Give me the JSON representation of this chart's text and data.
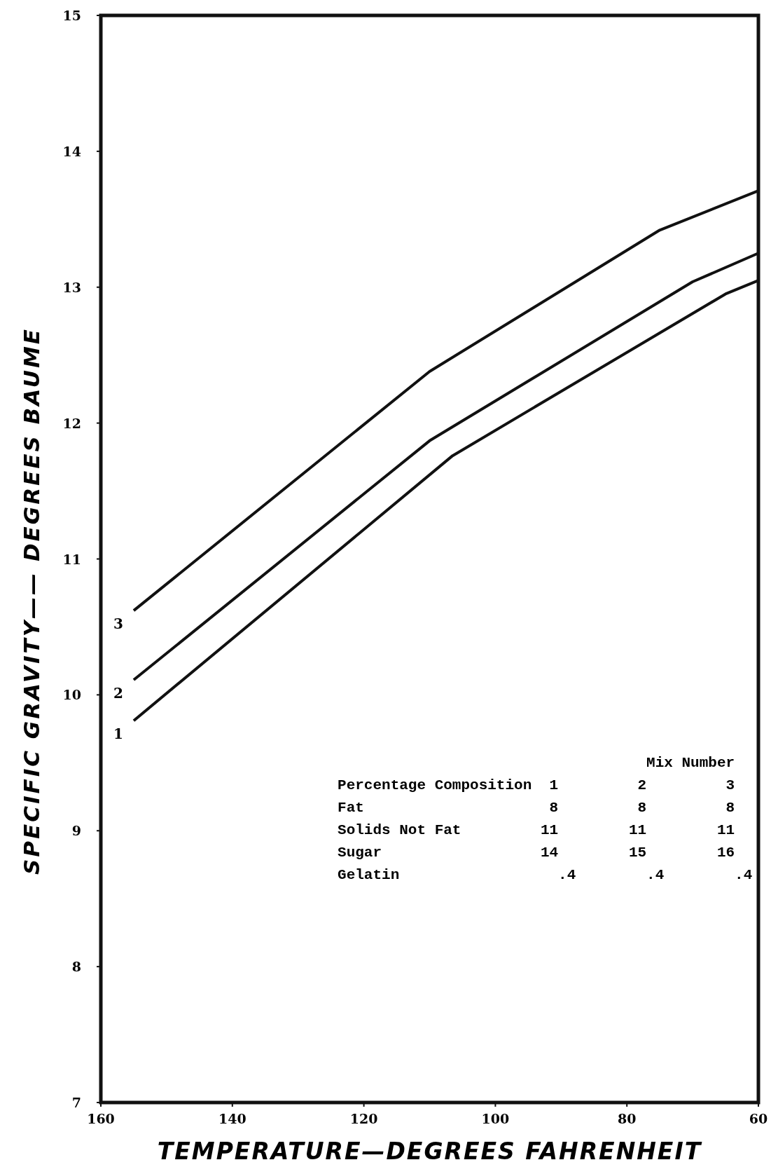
{
  "chart_data": {
    "type": "line",
    "xlabel": "TEMPERATURE—DEGREES FAHRENHEIT",
    "ylabel": "SPECIFIC GRAVITY—— DEGREES BAUME",
    "xlim": [
      160,
      60
    ],
    "ylim": [
      7,
      15
    ],
    "xticks": [
      160,
      140,
      120,
      100,
      80,
      60
    ],
    "yticks": [
      7,
      8,
      9,
      10,
      11,
      12,
      13,
      14,
      15
    ],
    "grid": false,
    "marker": "none",
    "line_style": "solid",
    "series": [
      {
        "name": "3",
        "color": "#111111",
        "x": [
          155,
          110,
          75,
          60
        ],
        "values": [
          10.62,
          12.38,
          13.42,
          13.71
        ]
      },
      {
        "name": "2",
        "color": "#111111",
        "x": [
          155,
          110,
          70,
          60
        ],
        "values": [
          10.11,
          11.87,
          13.04,
          13.25
        ]
      },
      {
        "name": "1",
        "color": "#111111",
        "x": [
          155,
          106.5,
          65,
          60
        ],
        "values": [
          9.81,
          11.76,
          12.95,
          13.05
        ]
      }
    ],
    "annotations": [
      "                                   Mix Number",
      "Percentage Composition  1         2         3",
      "Fat                     8         8         8",
      "Solids Not Fat         11        11        11",
      "Sugar                  14        15        16",
      "Gelatin                  .4        .4        .4"
    ]
  }
}
